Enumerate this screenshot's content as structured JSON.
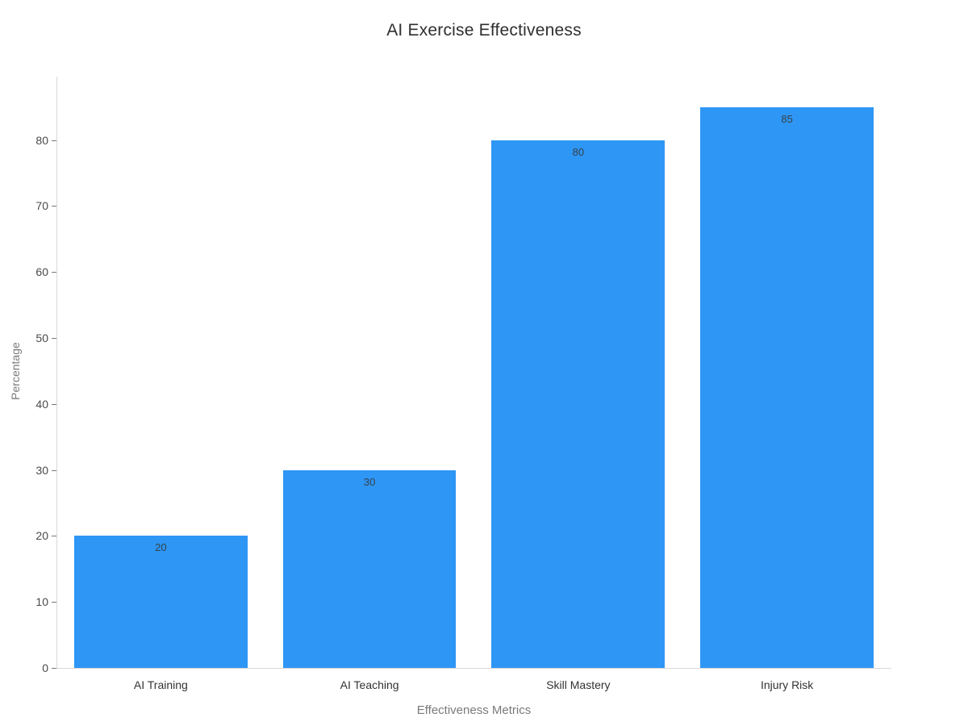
{
  "chart_data": {
    "type": "bar",
    "title": "AI Exercise Effectiveness",
    "xlabel": "Effectiveness Metrics",
    "ylabel": "Percentage",
    "categories": [
      "AI Training",
      "AI Teaching",
      "Skill Mastery",
      "Injury Risk"
    ],
    "values": [
      20,
      30,
      80,
      85
    ],
    "data_labels": [
      20,
      30,
      80,
      85
    ],
    "yticks": [
      0,
      10,
      20,
      30,
      40,
      50,
      60,
      70,
      80
    ],
    "ylim": [
      0,
      89.6
    ],
    "grid": false,
    "legend": "none",
    "bar_color": "#2E96F5",
    "title_color": "#2f2f2f",
    "axis_title_color": "#7a7a7a",
    "tick_label_color": "#4a4a4a",
    "bar_label_color": "#35424a"
  }
}
